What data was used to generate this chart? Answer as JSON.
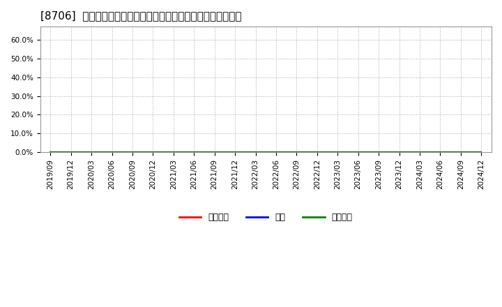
{
  "title": "[8706]  売上債権、在庫、買入債務の総資産に対する比率の推移",
  "x_labels": [
    "2019/09",
    "2019/12",
    "2020/03",
    "2020/06",
    "2020/09",
    "2020/12",
    "2021/03",
    "2021/06",
    "2021/09",
    "2021/12",
    "2022/03",
    "2022/06",
    "2022/09",
    "2022/12",
    "2023/03",
    "2023/06",
    "2023/09",
    "2023/12",
    "2024/03",
    "2024/06",
    "2024/09",
    "2024/12"
  ],
  "series": [
    {
      "name": "売上債権",
      "color": "#ff0000",
      "values": [
        0,
        0,
        0,
        0,
        0,
        0,
        0,
        0,
        0,
        0,
        0,
        0,
        0,
        0,
        0,
        0,
        0,
        0,
        0,
        0,
        0,
        0
      ]
    },
    {
      "name": "在庫",
      "color": "#0000ff",
      "values": [
        0,
        0,
        0,
        0,
        0,
        0,
        0,
        0,
        0,
        0,
        0,
        0,
        0,
        0,
        0,
        0,
        0,
        0,
        0,
        0,
        0,
        0
      ]
    },
    {
      "name": "買入債務",
      "color": "#008000",
      "values": [
        0,
        0,
        0,
        0,
        0,
        0,
        0,
        0,
        0,
        0,
        0,
        0,
        0,
        0,
        0,
        0,
        0,
        0,
        0,
        0,
        0,
        0
      ]
    }
  ],
  "ylim": [
    0.0,
    0.67
  ],
  "yticks": [
    0.0,
    0.1,
    0.2,
    0.3,
    0.4,
    0.5,
    0.6
  ],
  "ytick_labels": [
    "0.0%",
    "10.0%",
    "20.0%",
    "30.0%",
    "40.0%",
    "50.0%",
    "60.0%"
  ],
  "background_color": "#ffffff",
  "plot_bg_color": "#ffffff",
  "grid_color": "#aaaaaa",
  "title_fontsize": 11,
  "tick_fontsize": 7.5,
  "legend_fontsize": 9
}
